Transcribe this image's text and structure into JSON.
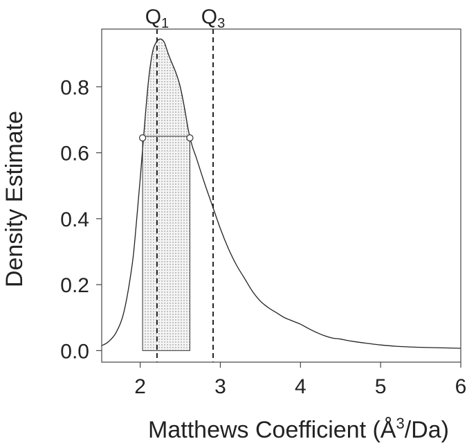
{
  "chart_data": {
    "type": "line",
    "title": "",
    "xlabel": "Matthews Coefficient (Å³/Da)",
    "xlabel_parts": {
      "main": "Matthews Coefficient (",
      "sym": "Å",
      "sup": "3",
      "tail": "/Da)"
    },
    "ylabel": "Density Estimate",
    "xlim": [
      1.52,
      6.0
    ],
    "ylim": [
      -0.035,
      0.975
    ],
    "x_ticks": [
      2,
      3,
      4,
      5,
      6
    ],
    "x_tick_labels": [
      "2",
      "3",
      "4",
      "5",
      "6"
    ],
    "y_ticks": [
      0.0,
      0.2,
      0.4,
      0.6,
      0.8
    ],
    "y_tick_labels": [
      "0.0",
      "0.2",
      "0.4",
      "0.6",
      "0.8"
    ],
    "grid": false,
    "legend": "none",
    "series": [
      {
        "x": [
          1.52,
          1.6,
          1.7,
          1.8,
          1.9,
          1.95,
          2.0,
          2.05,
          2.1,
          2.15,
          2.2,
          2.25,
          2.3,
          2.35,
          2.4,
          2.45,
          2.5,
          2.55,
          2.6,
          2.65,
          2.7,
          2.8,
          2.9,
          3.0,
          3.1,
          3.2,
          3.3,
          3.4,
          3.5,
          3.6,
          3.7,
          3.8,
          3.9,
          4.0,
          4.1,
          4.2,
          4.3,
          4.4,
          4.5,
          4.6,
          4.8,
          5.0,
          5.2,
          5.5,
          6.0
        ],
        "y": [
          0.015,
          0.026,
          0.055,
          0.12,
          0.26,
          0.38,
          0.52,
          0.67,
          0.81,
          0.9,
          0.935,
          0.945,
          0.935,
          0.9,
          0.87,
          0.84,
          0.8,
          0.74,
          0.67,
          0.62,
          0.585,
          0.51,
          0.44,
          0.37,
          0.31,
          0.26,
          0.22,
          0.18,
          0.15,
          0.13,
          0.115,
          0.1,
          0.09,
          0.08,
          0.067,
          0.055,
          0.045,
          0.038,
          0.035,
          0.03,
          0.023,
          0.017,
          0.013,
          0.01,
          0.007
        ]
      }
    ],
    "shaded_interval": {
      "x_start": 2.03,
      "x_end": 2.62,
      "pattern": "dotted"
    },
    "interval_markers": [
      {
        "x": 2.03,
        "y": 0.645
      },
      {
        "x": 2.62,
        "y": 0.645
      }
    ],
    "quartile_lines": [
      {
        "label": "Q",
        "sub": "1",
        "x": 2.21
      },
      {
        "label": "Q",
        "sub": "3",
        "x": 2.91
      }
    ]
  }
}
